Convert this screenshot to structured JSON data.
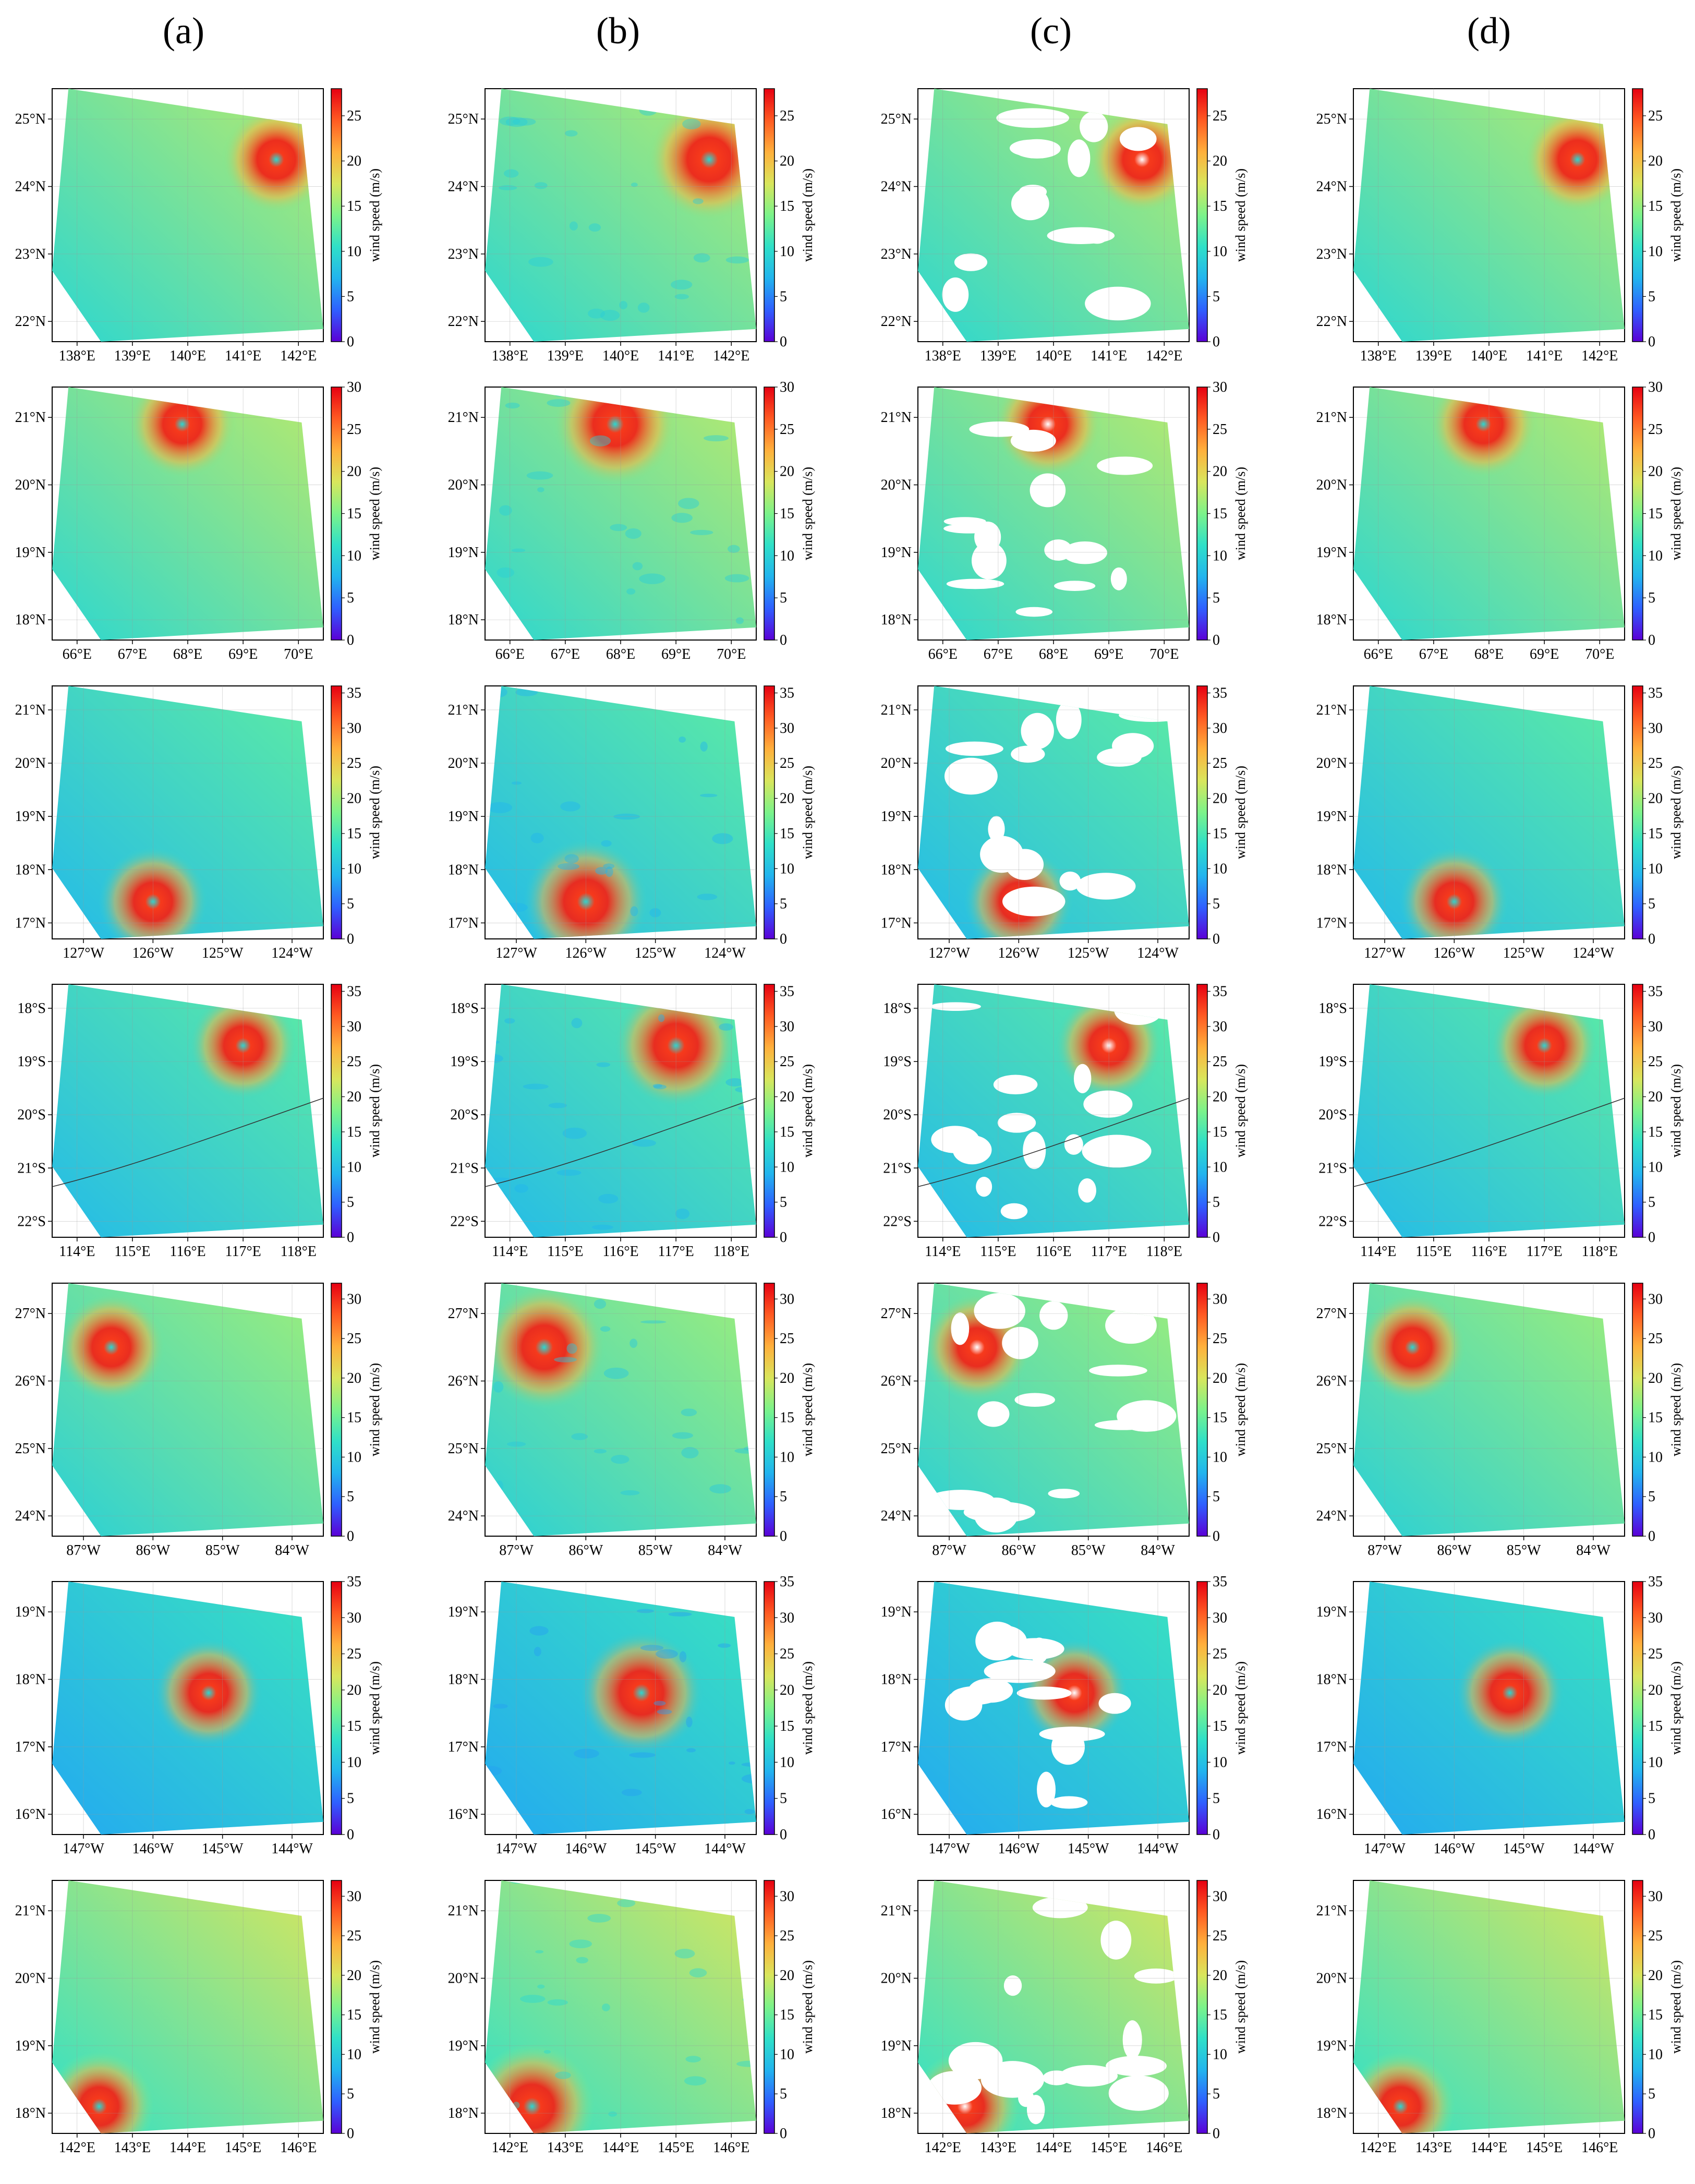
{
  "column_labels": [
    "(a)",
    "(b)",
    "(c)",
    "(d)"
  ],
  "colors": {
    "colormap": [
      "#5b00d6",
      "#2f5fff",
      "#22b4ee",
      "#2fe0c8",
      "#7cf38a",
      "#d9e65c",
      "#ffb03c",
      "#ff5a22",
      "#e60012"
    ],
    "missing": "#ffffff",
    "coast": "#333333"
  },
  "chart_data": [
    {
      "type": "heatmap",
      "row": 1,
      "colorbar_label": "wind speed (m/s)",
      "clim": [
        0,
        28
      ],
      "cbar_ticks": [
        "0",
        "5",
        "10",
        "15",
        "20",
        "25"
      ],
      "x_ticks": [
        "138°E",
        "139°E",
        "140°E",
        "141°E",
        "142°E"
      ],
      "y_ticks": [
        "25°N",
        "24°N",
        "23°N",
        "22°N"
      ],
      "storm_center": {
        "lon": 141.6,
        "lat": 24.4
      },
      "base_speed": 13,
      "max_speed": 28
    },
    {
      "type": "heatmap",
      "row": 2,
      "colorbar_label": "wind speed (m/s)",
      "clim": [
        0,
        30
      ],
      "cbar_ticks": [
        "0",
        "5",
        "10",
        "15",
        "20",
        "25",
        "30"
      ],
      "x_ticks": [
        "66°E",
        "67°E",
        "68°E",
        "69°E",
        "70°E"
      ],
      "y_ticks": [
        "21°N",
        "20°N",
        "19°N",
        "18°N"
      ],
      "storm_center": {
        "lon": 67.9,
        "lat": 20.9
      },
      "base_speed": 14,
      "max_speed": 30
    },
    {
      "type": "heatmap",
      "row": 3,
      "colorbar_label": "wind speed (m/s)",
      "clim": [
        0,
        36
      ],
      "cbar_ticks": [
        "0",
        "5",
        "10",
        "15",
        "20",
        "25",
        "30",
        "35"
      ],
      "x_ticks": [
        "127°W",
        "126°W",
        "125°W",
        "124°W"
      ],
      "y_ticks": [
        "21°N",
        "20°N",
        "19°N",
        "18°N",
        "17°N"
      ],
      "storm_center": {
        "lon": -126.0,
        "lat": 17.4
      },
      "base_speed": 13,
      "max_speed": 36
    },
    {
      "type": "heatmap",
      "row": 4,
      "colorbar_label": "wind speed (m/s)",
      "clim": [
        0,
        36
      ],
      "cbar_ticks": [
        "0",
        "5",
        "10",
        "15",
        "20",
        "25",
        "30",
        "35"
      ],
      "x_ticks": [
        "114°E",
        "115°E",
        "116°E",
        "117°E",
        "118°E"
      ],
      "y_ticks": [
        "18°S",
        "19°S",
        "20°S",
        "21°S",
        "22°S"
      ],
      "storm_center": {
        "lon": 117.0,
        "lat": -18.7
      },
      "base_speed": 13,
      "max_speed": 36
    },
    {
      "type": "heatmap",
      "row": 5,
      "colorbar_label": "wind speed (m/s)",
      "clim": [
        0,
        32
      ],
      "cbar_ticks": [
        "0",
        "5",
        "10",
        "15",
        "20",
        "25",
        "30"
      ],
      "x_ticks": [
        "87°W",
        "86°W",
        "85°W",
        "84°W"
      ],
      "y_ticks": [
        "27°N",
        "26°N",
        "25°N",
        "24°N"
      ],
      "storm_center": {
        "lon": -86.6,
        "lat": 26.5
      },
      "base_speed": 14,
      "max_speed": 32
    },
    {
      "type": "heatmap",
      "row": 6,
      "colorbar_label": "wind speed (m/s)",
      "clim": [
        0,
        35
      ],
      "cbar_ticks": [
        "0",
        "5",
        "10",
        "15",
        "20",
        "25",
        "30",
        "35"
      ],
      "x_ticks": [
        "147°W",
        "146°W",
        "145°W",
        "144°W"
      ],
      "y_ticks": [
        "19°N",
        "18°N",
        "17°N",
        "16°N"
      ],
      "storm_center": {
        "lon": -145.2,
        "lat": 17.8
      },
      "base_speed": 11,
      "max_speed": 35
    },
    {
      "type": "heatmap",
      "row": 7,
      "colorbar_label": "wind speed (m/s)",
      "clim": [
        0,
        32
      ],
      "cbar_ticks": [
        "0",
        "5",
        "10",
        "15",
        "20",
        "25",
        "30"
      ],
      "x_ticks": [
        "142°E",
        "143°E",
        "144°E",
        "145°E",
        "146°E"
      ],
      "y_ticks": [
        "21°N",
        "20°N",
        "19°N",
        "18°N"
      ],
      "storm_center": {
        "lon": 142.4,
        "lat": 18.1
      },
      "base_speed": 16,
      "max_speed": 32
    }
  ]
}
